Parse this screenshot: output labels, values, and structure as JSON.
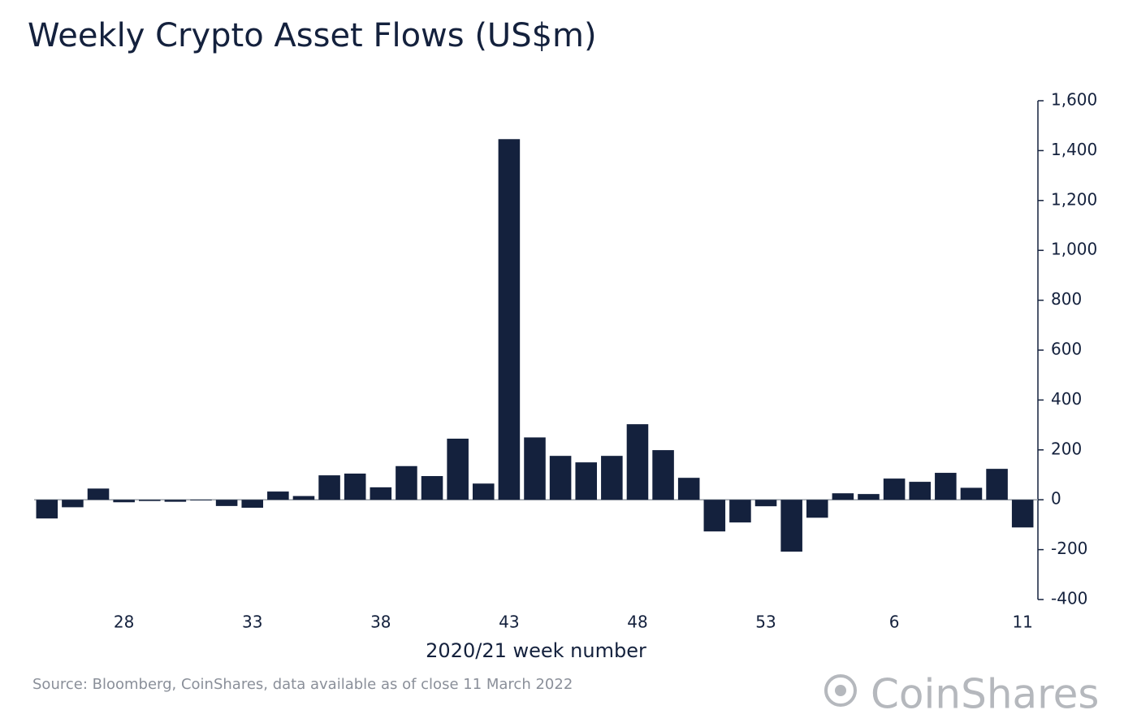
{
  "chart_data": {
    "type": "bar",
    "title": "Weekly Crypto Asset Flows (US$m)",
    "x_label": "2020/21 week number",
    "source": "Source: Bloomberg, CoinShares, data available as of close 11 March 2022",
    "logo": "CoinShares",
    "color": "#14213d",
    "categories": [
      null,
      null,
      null,
      "28",
      null,
      null,
      null,
      null,
      "33",
      null,
      null,
      null,
      null,
      "38",
      null,
      null,
      null,
      null,
      "43",
      null,
      null,
      null,
      null,
      "48",
      null,
      null,
      null,
      null,
      "53",
      null,
      null,
      null,
      null,
      "6",
      null,
      null,
      null,
      null,
      "11"
    ],
    "values": [
      -75,
      -30,
      45,
      -10,
      -5,
      -8,
      -3,
      -25,
      -32,
      33,
      15,
      98,
      105,
      50,
      135,
      95,
      245,
      65,
      1446,
      250,
      176,
      150,
      176,
      303,
      199,
      88,
      -127,
      -91,
      -26,
      -208,
      -72,
      26,
      23,
      85,
      72,
      108,
      48,
      124,
      -111
    ],
    "ylim": [
      -400,
      1600
    ],
    "yticks": [
      -400,
      -200,
      0,
      200,
      400,
      600,
      800,
      {
        "value": 1000,
        "label": "1,000"
      },
      {
        "value": 1200,
        "label": "1,200"
      },
      {
        "value": 1400,
        "label": "1,400"
      },
      {
        "value": 1600,
        "label": "1,600"
      }
    ],
    "y_axis_side": "right"
  }
}
